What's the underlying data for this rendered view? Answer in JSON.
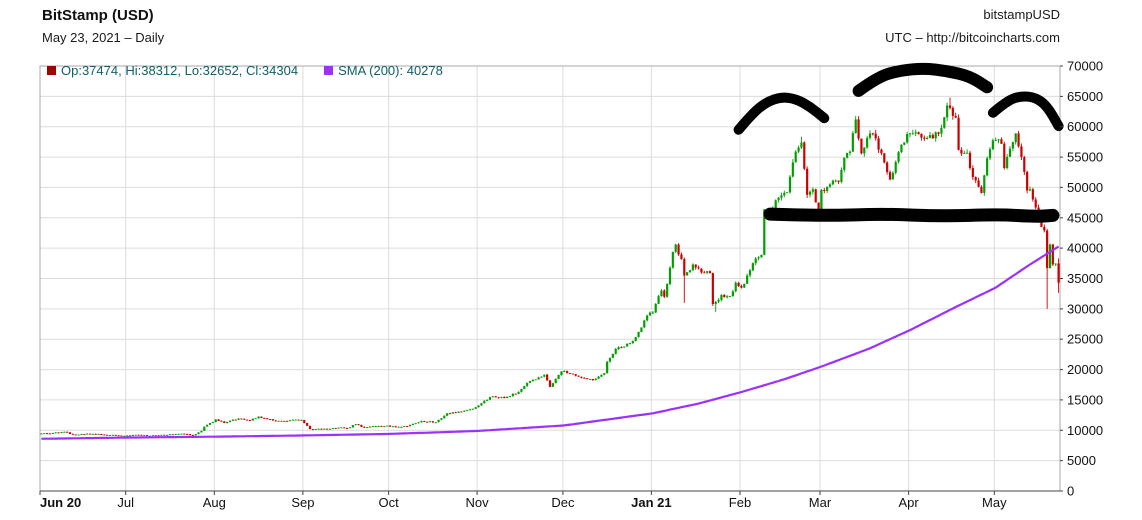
{
  "header": {
    "title": "BitStamp (USD)",
    "subtitle": "May 23, 2021 – Daily",
    "symbol": "bitstampUSD",
    "source": "UTC – http://bitcoincharts.com"
  },
  "legend": {
    "ohlc": "Op:37474, Hi:38312, Lo:32652, Cl:34304",
    "sma": "SMA (200): 40278"
  },
  "chart_data": {
    "type": "candlestick",
    "title": "BitStamp (USD)",
    "period_label": "May 23, 2021 – Daily",
    "timezone_source": "UTC – http://bitcoincharts.com",
    "ylim": [
      0,
      70000
    ],
    "days": 357,
    "y_ticks": [
      0,
      5000,
      10000,
      15000,
      20000,
      25000,
      30000,
      35000,
      40000,
      45000,
      50000,
      55000,
      60000,
      65000,
      70000
    ],
    "x_ticks": [
      {
        "label": "Jun 20",
        "day": 0,
        "bold": true,
        "anchor": "start"
      },
      {
        "label": "Jul",
        "day": 30
      },
      {
        "label": "Aug",
        "day": 61
      },
      {
        "label": "Sep",
        "day": 92
      },
      {
        "label": "Oct",
        "day": 122
      },
      {
        "label": "Nov",
        "day": 153
      },
      {
        "label": "Dec",
        "day": 183
      },
      {
        "label": "Jan 21",
        "day": 214,
        "bold": true
      },
      {
        "label": "Feb",
        "day": 245
      },
      {
        "label": "Mar",
        "day": 273
      },
      {
        "label": "Apr",
        "day": 304
      },
      {
        "label": "May",
        "day": 334
      }
    ],
    "series": [
      {
        "name": "BitStamp USD daily OHLC",
        "type": "candlestick",
        "last_candle": {
          "open": 37474,
          "high": 38312,
          "low": 32652,
          "close": 34304
        },
        "low_overrides": {
          "225": 31000,
          "236": 29500,
          "352": 30000
        },
        "high_overrides": {
          "318": 64800,
          "266": 58350
        },
        "close_keyframes": [
          [
            0,
            9450
          ],
          [
            4,
            9550
          ],
          [
            8,
            9750
          ],
          [
            11,
            9300
          ],
          [
            14,
            9350
          ],
          [
            18,
            9400
          ],
          [
            22,
            9250
          ],
          [
            26,
            9150
          ],
          [
            30,
            9140
          ],
          [
            34,
            9250
          ],
          [
            38,
            9100
          ],
          [
            42,
            9250
          ],
          [
            46,
            9300
          ],
          [
            50,
            9400
          ],
          [
            53,
            9200
          ],
          [
            56,
            9900
          ],
          [
            57,
            10600
          ],
          [
            60,
            11350
          ],
          [
            61,
            11800
          ],
          [
            64,
            11200
          ],
          [
            67,
            11750
          ],
          [
            70,
            11900
          ],
          [
            73,
            11600
          ],
          [
            76,
            12250
          ],
          [
            79,
            11850
          ],
          [
            83,
            11550
          ],
          [
            87,
            11650
          ],
          [
            91,
            11700
          ],
          [
            94,
            10200
          ],
          [
            97,
            10250
          ],
          [
            100,
            10150
          ],
          [
            104,
            10450
          ],
          [
            107,
            10350
          ],
          [
            110,
            11000
          ],
          [
            113,
            10430
          ],
          [
            117,
            10700
          ],
          [
            121,
            10780
          ],
          [
            122,
            10620
          ],
          [
            125,
            10570
          ],
          [
            128,
            10670
          ],
          [
            133,
            11530
          ],
          [
            138,
            11320
          ],
          [
            142,
            12800
          ],
          [
            147,
            13050
          ],
          [
            152,
            13800
          ],
          [
            155,
            14850
          ],
          [
            158,
            15600
          ],
          [
            162,
            15300
          ],
          [
            167,
            16320
          ],
          [
            170,
            17800
          ],
          [
            174,
            18700
          ],
          [
            176,
            19150
          ],
          [
            178,
            17150
          ],
          [
            182,
            19700
          ],
          [
            186,
            19250
          ],
          [
            189,
            18650
          ],
          [
            193,
            18250
          ],
          [
            197,
            19400
          ],
          [
            198,
            21300
          ],
          [
            201,
            23400
          ],
          [
            204,
            23800
          ],
          [
            207,
            24700
          ],
          [
            209,
            26200
          ],
          [
            212,
            28900
          ],
          [
            214,
            29400
          ],
          [
            216,
            32100
          ],
          [
            217,
            33000
          ],
          [
            218,
            32000
          ],
          [
            220,
            36800
          ],
          [
            221,
            39400
          ],
          [
            222,
            40600
          ],
          [
            224,
            38200
          ],
          [
            225,
            35500
          ],
          [
            228,
            37300
          ],
          [
            231,
            36000
          ],
          [
            234,
            35900
          ],
          [
            235,
            30800
          ],
          [
            238,
            32300
          ],
          [
            241,
            32100
          ],
          [
            243,
            34300
          ],
          [
            245,
            33500
          ],
          [
            247,
            35500
          ],
          [
            250,
            38300
          ],
          [
            252,
            38900
          ],
          [
            253,
            46400
          ],
          [
            255,
            44800
          ],
          [
            257,
            47900
          ],
          [
            259,
            48700
          ],
          [
            261,
            49200
          ],
          [
            264,
            55900
          ],
          [
            266,
            57400
          ],
          [
            268,
            48800
          ],
          [
            270,
            49700
          ],
          [
            272,
            45100
          ],
          [
            273,
            49600
          ],
          [
            276,
            50500
          ],
          [
            279,
            50900
          ],
          [
            281,
            54900
          ],
          [
            283,
            55900
          ],
          [
            285,
            61200
          ],
          [
            287,
            55600
          ],
          [
            290,
            58900
          ],
          [
            292,
            58100
          ],
          [
            295,
            54100
          ],
          [
            297,
            51300
          ],
          [
            300,
            55800
          ],
          [
            303,
            58800
          ],
          [
            306,
            59100
          ],
          [
            309,
            58000
          ],
          [
            312,
            58100
          ],
          [
            315,
            59800
          ],
          [
            317,
            63500
          ],
          [
            318,
            63100
          ],
          [
            320,
            61500
          ],
          [
            321,
            56200
          ],
          [
            324,
            55700
          ],
          [
            326,
            51700
          ],
          [
            328,
            50100
          ],
          [
            329,
            49100
          ],
          [
            331,
            54800
          ],
          [
            333,
            57750
          ],
          [
            334,
            57800
          ],
          [
            336,
            57200
          ],
          [
            337,
            53200
          ],
          [
            339,
            56400
          ],
          [
            341,
            58900
          ],
          [
            343,
            55000
          ],
          [
            345,
            49500
          ],
          [
            346,
            49700
          ],
          [
            348,
            46700
          ],
          [
            350,
            43500
          ],
          [
            351,
            42900
          ],
          [
            352,
            36700
          ],
          [
            353,
            40600
          ],
          [
            354,
            37300
          ],
          [
            355,
            37450
          ],
          [
            356,
            34304
          ]
        ]
      },
      {
        "name": "SMA (200)",
        "type": "line",
        "current_value": 40278,
        "keyframes": [
          [
            0,
            8600
          ],
          [
            30,
            8800
          ],
          [
            61,
            8950
          ],
          [
            92,
            9150
          ],
          [
            122,
            9400
          ],
          [
            153,
            9900
          ],
          [
            183,
            10800
          ],
          [
            214,
            12800
          ],
          [
            230,
            14400
          ],
          [
            245,
            16300
          ],
          [
            260,
            18400
          ],
          [
            273,
            20500
          ],
          [
            290,
            23500
          ],
          [
            304,
            26500
          ],
          [
            320,
            30300
          ],
          [
            334,
            33500
          ],
          [
            345,
            37000
          ],
          [
            356,
            40278
          ]
        ]
      }
    ],
    "annotations": [
      {
        "name": "left-shoulder-arc",
        "width": 10,
        "points": [
          [
            244,
            59500
          ],
          [
            249,
            62300
          ],
          [
            254,
            64100
          ],
          [
            259,
            64900
          ],
          [
            264,
            64600
          ],
          [
            269,
            63300
          ],
          [
            274,
            61400
          ]
        ]
      },
      {
        "name": "head-arc",
        "width": 12,
        "points": [
          [
            286,
            65900
          ],
          [
            293,
            68300
          ],
          [
            301,
            69300
          ],
          [
            309,
            69600
          ],
          [
            317,
            69200
          ],
          [
            325,
            68300
          ],
          [
            331,
            66500
          ]
        ]
      },
      {
        "name": "right-shoulder-arc",
        "width": 10,
        "points": [
          [
            333,
            62300
          ],
          [
            338,
            64300
          ],
          [
            343,
            65100
          ],
          [
            348,
            64800
          ],
          [
            352,
            63400
          ],
          [
            356,
            60100
          ]
        ]
      },
      {
        "name": "neckline",
        "width": 13,
        "points": [
          [
            255,
            45600
          ],
          [
            275,
            45300
          ],
          [
            295,
            45650
          ],
          [
            315,
            45250
          ],
          [
            335,
            45550
          ],
          [
            348,
            45200
          ],
          [
            354,
            45400
          ]
        ]
      }
    ],
    "colors": {
      "up": "#00a000",
      "down": "#cc0000",
      "sma": "#9b30ff",
      "annotation": "#000000",
      "grid": "#dcdcdc",
      "frame": "#a9a9a9",
      "axis": "#444444",
      "axis_text": "#111111",
      "legend_text": "#0f6068",
      "legend_ohlc_swatch": "#a40000",
      "legend_sma_swatch": "#9b30ff"
    }
  }
}
